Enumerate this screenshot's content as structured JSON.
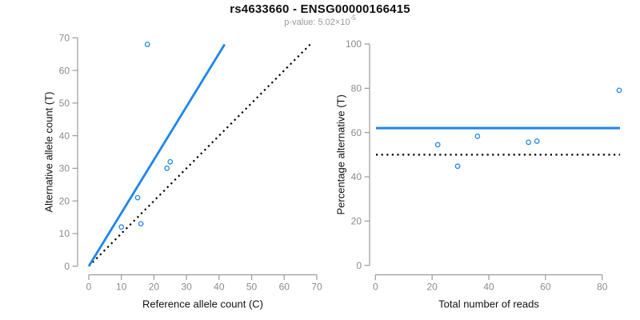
{
  "header": {
    "title": "rs4633660 - ENSG00000166415",
    "pvalue_text": "p-value: 5.02×10",
    "pvalue_exponent": "-5"
  },
  "colors": {
    "accent_blue": "#1C86EE",
    "line_black": "#000000",
    "axis_gray": "#9A9A9A",
    "tick_text_gray": "#8C8C8C",
    "label_black": "#111111"
  },
  "chart_data": [
    {
      "type": "scatter",
      "title": "rs4633660 - ENSG00000166415",
      "subtitle": "p-value: 5.02×10^-5",
      "xlabel": "Reference allele count (C)",
      "ylabel": "Alternative allele count (T)",
      "xlim": [
        0,
        70
      ],
      "ylim": [
        0,
        70
      ],
      "xticks": [
        0,
        10,
        20,
        30,
        40,
        50,
        60,
        70
      ],
      "yticks": [
        0,
        10,
        20,
        30,
        40,
        50,
        60,
        70
      ],
      "grid": false,
      "legend": null,
      "points": [
        [
          10,
          12
        ],
        [
          15,
          21
        ],
        [
          16,
          13
        ],
        [
          18,
          68
        ],
        [
          24,
          30
        ],
        [
          25,
          32
        ]
      ],
      "lines": [
        {
          "name": "identity-line",
          "x1": 0,
          "y1": 0,
          "x2": 68,
          "y2": 68,
          "style": "dotted",
          "color": "line_black",
          "width": 2.2
        },
        {
          "name": "fitted-ratio-line",
          "x1": 0,
          "y1": 0,
          "x2": 41.7,
          "y2": 68,
          "style": "solid",
          "color": "accent_blue",
          "width": 2.8
        }
      ]
    },
    {
      "type": "scatter",
      "xlabel": "Total number of reads",
      "ylabel": "Percentage alternative (T)",
      "xlim": [
        0,
        86
      ],
      "ylim": [
        0,
        100
      ],
      "xticks": [
        0,
        20,
        40,
        60,
        80
      ],
      "yticks": [
        0,
        20,
        40,
        60,
        80,
        100
      ],
      "grid": false,
      "legend": null,
      "points": [
        [
          22,
          54.5
        ],
        [
          29,
          44.8
        ],
        [
          36,
          58.3
        ],
        [
          54,
          55.6
        ],
        [
          57,
          56.1
        ],
        [
          86,
          79.1
        ]
      ],
      "hlines": [
        {
          "name": "fifty-percent-line",
          "y": 50,
          "style": "dotted",
          "color": "line_black",
          "width": 2.2
        },
        {
          "name": "mean-percentage-line",
          "y": 62,
          "style": "solid",
          "color": "accent_blue",
          "width": 3
        }
      ]
    }
  ]
}
